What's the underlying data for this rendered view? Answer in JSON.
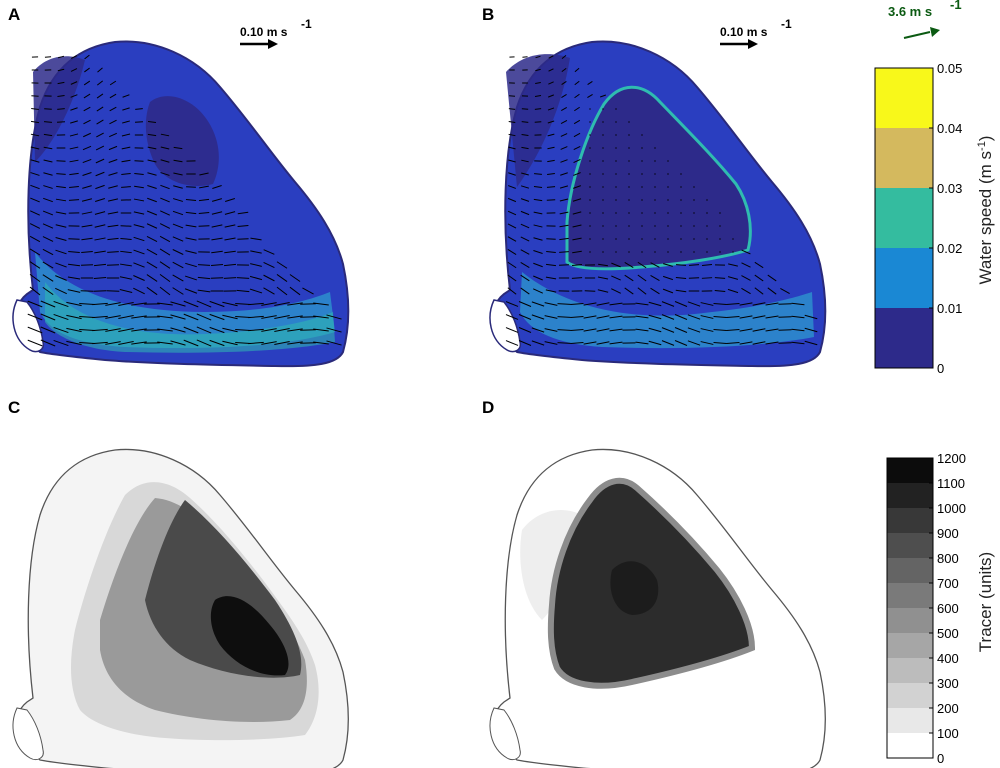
{
  "panels": [
    {
      "id": "A",
      "label": "A",
      "kind": "speed",
      "scale_arrow": "0.10 m s",
      "scale_exp": "-1"
    },
    {
      "id": "B",
      "label": "B",
      "kind": "speed",
      "scale_arrow": "0.10 m s",
      "scale_exp": "-1"
    },
    {
      "id": "C",
      "label": "C",
      "kind": "tracer"
    },
    {
      "id": "D",
      "label": "D",
      "kind": "tracer"
    }
  ],
  "wind": {
    "label": "3.6 m s",
    "exp": "-1",
    "color": "#0b5a12"
  },
  "speed_colorbar": {
    "title": "Water speed (m s",
    "title_exp": "-1",
    "title_close": ")",
    "ticks": [
      "0",
      "0.01",
      "0.02",
      "0.03",
      "0.04",
      "0.05"
    ],
    "colors": [
      "#2d2a8a",
      "#1a88d4",
      "#34bc9f",
      "#d4b95e",
      "#f8f81a"
    ]
  },
  "tracer_colorbar": {
    "title": "Tracer (units)",
    "ticks": [
      "0",
      "100",
      "200",
      "300",
      "400",
      "500",
      "600",
      "700",
      "800",
      "900",
      "1000",
      "1100",
      "1200"
    ],
    "colors": [
      "#ffffff",
      "#e8e8e8",
      "#d2d2d2",
      "#bcbcbc",
      "#a6a6a6",
      "#909090",
      "#7a7a7a",
      "#646464",
      "#4e4e4e",
      "#383838",
      "#222222",
      "#0c0c0c"
    ]
  },
  "colors": {
    "outline": "#2a2a7a",
    "tracer_outline": "#555555",
    "arrow": "#000000"
  }
}
